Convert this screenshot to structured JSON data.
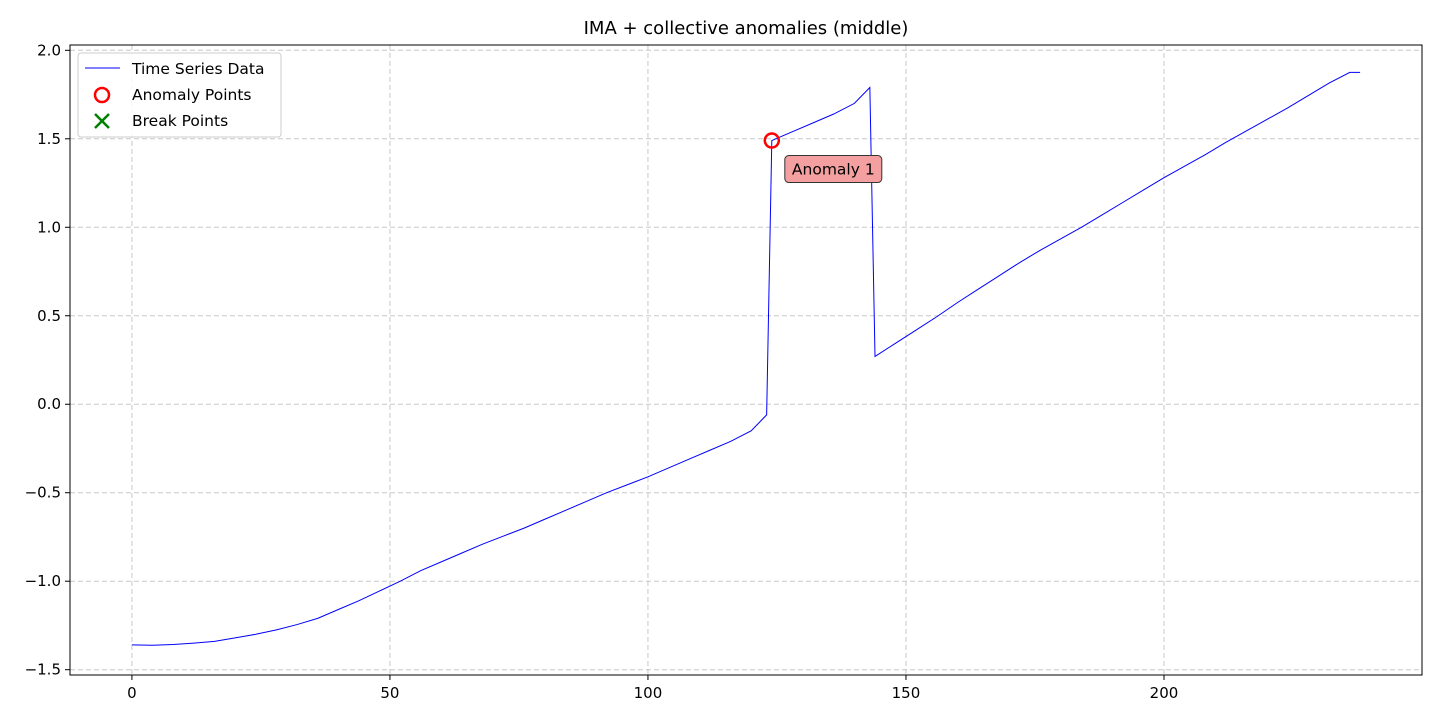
{
  "chart_data": {
    "type": "line",
    "title": "IMA + collective anomalies (middle)",
    "xlabel": "",
    "ylabel": "",
    "xlim": [
      -12,
      250
    ],
    "ylim": [
      -1.53,
      2.03
    ],
    "xticks": [
      0,
      50,
      100,
      150,
      200
    ],
    "yticks": [
      -1.5,
      -1.0,
      -0.5,
      0.0,
      0.5,
      1.0,
      1.5,
      2.0
    ],
    "xtick_labels": [
      "0",
      "50",
      "100",
      "150",
      "200"
    ],
    "ytick_labels": [
      "−1.5",
      "−1.0",
      "−0.5",
      "0.0",
      "0.5",
      "1.0",
      "1.5",
      "2.0"
    ],
    "grid": true,
    "legend_position": "top-left",
    "legend": [
      "Time Series Data",
      "Anomaly Points",
      "Break Points"
    ],
    "series": [
      {
        "name": "Time Series Data",
        "color": "#0000ff",
        "x": [
          0,
          4,
          8,
          12,
          16,
          20,
          24,
          28,
          32,
          36,
          40,
          44,
          48,
          52,
          56,
          60,
          64,
          68,
          72,
          76,
          80,
          84,
          88,
          92,
          96,
          100,
          104,
          108,
          112,
          116,
          120,
          123,
          124,
          128,
          132,
          136,
          140,
          143,
          144,
          148,
          152,
          156,
          160,
          164,
          168,
          172,
          176,
          180,
          184,
          188,
          192,
          196,
          200,
          204,
          208,
          212,
          216,
          220,
          224,
          228,
          232,
          236,
          238
        ],
        "y": [
          -1.36,
          -1.362,
          -1.358,
          -1.35,
          -1.34,
          -1.32,
          -1.3,
          -1.275,
          -1.245,
          -1.21,
          -1.16,
          -1.11,
          -1.055,
          -1.0,
          -0.94,
          -0.89,
          -0.84,
          -0.79,
          -0.745,
          -0.7,
          -0.65,
          -0.6,
          -0.55,
          -0.5,
          -0.455,
          -0.41,
          -0.36,
          -0.31,
          -0.26,
          -0.21,
          -0.15,
          -0.06,
          1.49,
          1.54,
          1.59,
          1.64,
          1.7,
          1.79,
          0.27,
          0.345,
          0.42,
          0.495,
          0.575,
          0.65,
          0.725,
          0.8,
          0.87,
          0.935,
          1.0,
          1.07,
          1.14,
          1.21,
          1.28,
          1.345,
          1.41,
          1.48,
          1.545,
          1.61,
          1.675,
          1.745,
          1.815,
          1.875,
          1.875
        ]
      },
      {
        "name": "Anomaly Points",
        "color": "#ff0000",
        "x": [
          124
        ],
        "y": [
          1.49
        ]
      },
      {
        "name": "Break Points",
        "color": "#008000",
        "x": [],
        "y": []
      }
    ],
    "annotations": [
      {
        "text": "Anomaly 1",
        "x": 124,
        "y": 1.49,
        "bg": "#f4a0a0"
      }
    ]
  }
}
